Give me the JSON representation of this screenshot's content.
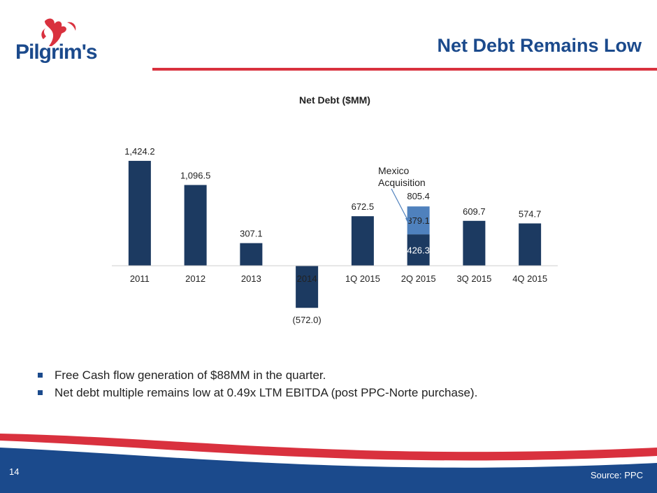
{
  "brand": {
    "logo_text": "Pilgrim's",
    "primary": "#1b4a8c",
    "accent": "#d9313e",
    "bar_color": "#1c3a61",
    "bar_color_light": "#4f81bd"
  },
  "header": {
    "title": "Net Debt Remains Low"
  },
  "chart_data": {
    "type": "bar",
    "title": "Net Debt ($MM)",
    "categories": [
      "2011",
      "2012",
      "2013",
      "2014",
      "1Q 2015",
      "2Q 2015",
      "3Q 2015",
      "4Q 2015"
    ],
    "values": [
      1424.2,
      1096.5,
      307.1,
      -572.0,
      672.5,
      805.4,
      609.7,
      574.7
    ],
    "value_labels": [
      "1,424.2",
      "1,096.5",
      "307.1",
      "(572.0)",
      "672.5",
      "805.4",
      "609.7",
      "574.7"
    ],
    "stacked_2q_2015": {
      "base": {
        "value": 426.3,
        "label": "426.3"
      },
      "top": {
        "value": 379.1,
        "label": "379.1"
      }
    },
    "annotation": {
      "text_line1": "Mexico",
      "text_line2": "Acquisition"
    },
    "xlabel": "",
    "ylabel": ""
  },
  "bullets": [
    "Free Cash flow generation of $88MM in the quarter.",
    "Net debt multiple remains low at 0.49x LTM EBITDA (post PPC-Norte purchase)."
  ],
  "footer": {
    "page_number": "14",
    "source": "Source: PPC"
  }
}
